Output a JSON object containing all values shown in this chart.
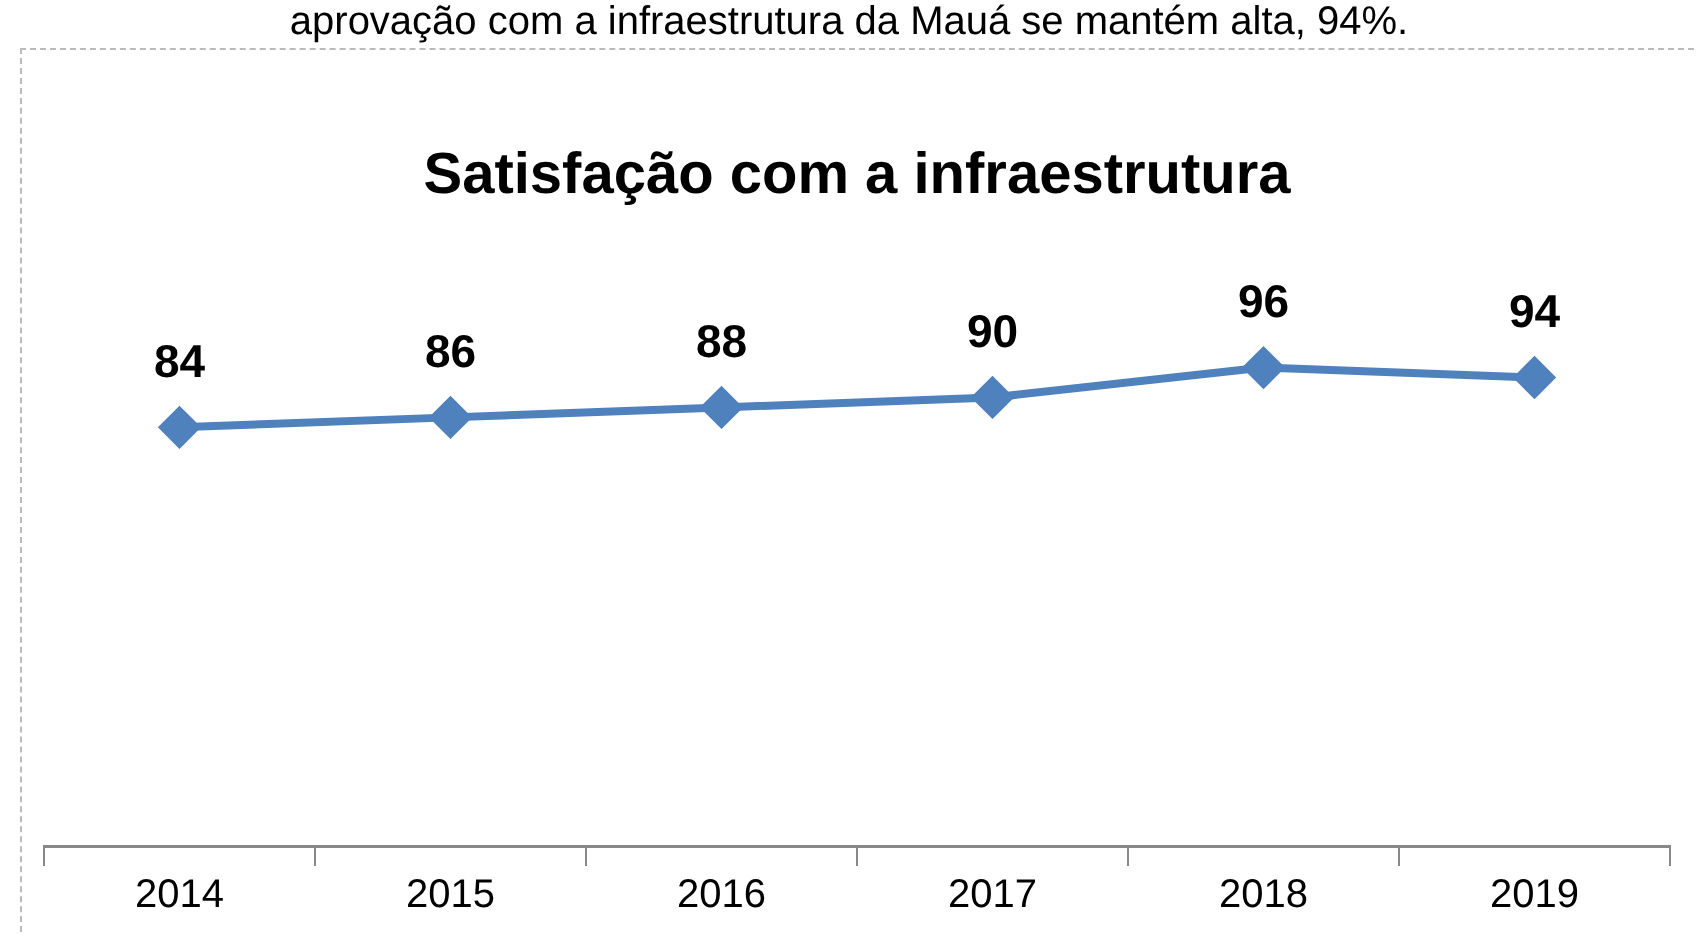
{
  "chart_data": {
    "type": "line",
    "title": "Satisfação com a infraestrutura",
    "annotations": [
      "aprovação com a infraestrutura da Mauá se mantém alta, 94%."
    ],
    "categories": [
      "2014",
      "2015",
      "2016",
      "2017",
      "2018",
      "2019"
    ],
    "series": [
      {
        "color": "#4f81bd",
        "values": [
          84,
          86,
          88,
          90,
          96,
          94
        ]
      }
    ],
    "tick_labels": "x",
    "data_labels": true,
    "marker": "diamond",
    "line_style": "solid",
    "legend": false,
    "grid": false
  }
}
